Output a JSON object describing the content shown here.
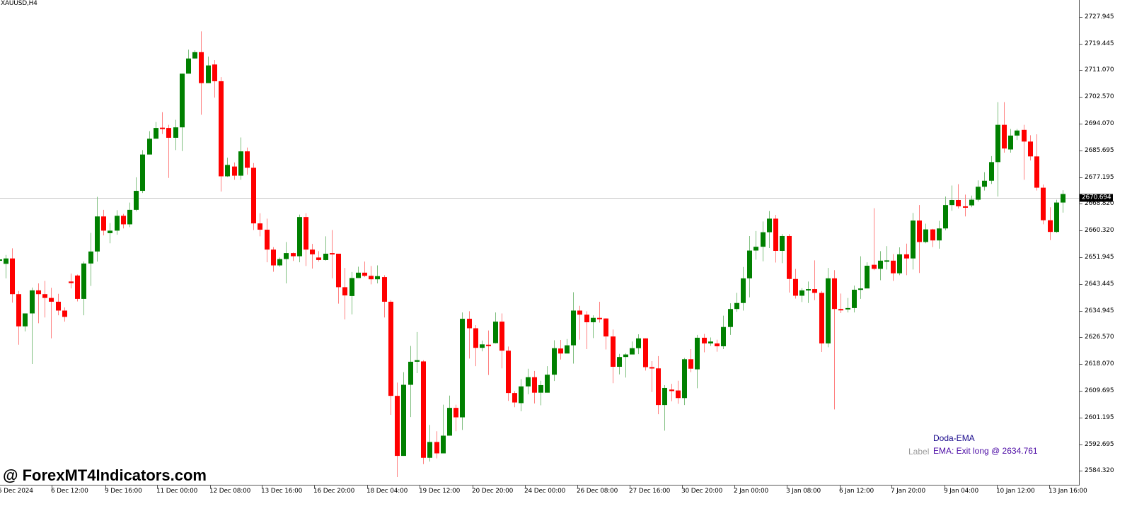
{
  "window": {
    "symbol_label": "XAUUSD,H4"
  },
  "colors": {
    "bull": "#008000",
    "bear": "#ff0000",
    "bull_wick": "#7fbf7f",
    "bear_wick": "#ff8080",
    "bid_line": "#c8c8c8",
    "axis": "#555555"
  },
  "price_axis": {
    "labels": [
      "2727.945",
      "2719.445",
      "2711.070",
      "2702.570",
      "2694.070",
      "2685.695",
      "2677.195",
      "2668.820",
      "2660.320",
      "2651.945",
      "2643.445",
      "2634.945",
      "2626.570",
      "2618.070",
      "2609.695",
      "2601.195",
      "2592.695",
      "2584.320"
    ],
    "current_price": "2670.694"
  },
  "time_axis": {
    "labels": [
      "5 Dec 2024",
      "6 Dec 12:00",
      "9 Dec 16:00",
      "11 Dec 00:00",
      "12 Dec 08:00",
      "13 Dec 16:00",
      "16 Dec 20:00",
      "18 Dec 04:00",
      "19 Dec 12:00",
      "20 Dec 20:00",
      "24 Dec 00:00",
      "26 Dec 08:00",
      "27 Dec 16:00",
      "30 Dec 20:00",
      "2 Jan 00:00",
      "3 Jan 08:00",
      "6 Jan 12:00",
      "7 Jan 20:00",
      "9 Jan 04:00",
      "10 Jan 12:00",
      "13 Jan 16:00"
    ]
  },
  "watermark": "@ ForexMT4Indicators.com",
  "indicator": {
    "name": "Doda-EMA",
    "label": "Label",
    "value_text": "EMA: Exit long @ 2634.761"
  },
  "chart_data": {
    "type": "candlestick",
    "title": "XAUUSD,H4",
    "xlabel": "",
    "ylabel": "",
    "ylim": [
      2582.0,
      2731.0
    ],
    "grid": false,
    "current_price": 2670.694,
    "x": [
      "5 Dec 2024",
      "6 Dec 12:00",
      "9 Dec 16:00",
      "11 Dec 00:00",
      "12 Dec 08:00",
      "13 Dec 16:00",
      "16 Dec 20:00",
      "18 Dec 04:00",
      "19 Dec 12:00",
      "20 Dec 20:00",
      "24 Dec 00:00",
      "26 Dec 08:00",
      "27 Dec 16:00",
      "30 Dec 20:00",
      "2 Jan 00:00",
      "3 Jan 08:00",
      "6 Jan 12:00",
      "7 Jan 20:00",
      "9 Jan 04:00",
      "10 Jan 12:00",
      "13 Jan 16:00"
    ],
    "candles": [
      [
        2651.0,
        2651.2,
        2651.5,
        2650.7
      ],
      [
        2649.8,
        2651.5,
        2652.6,
        2645.2
      ],
      [
        2651.5,
        2640.2,
        2654.7,
        2637.5
      ],
      [
        2640.2,
        2630.0,
        2641.2,
        2624.2
      ],
      [
        2630.0,
        2634.1,
        2634.1,
        2628.4
      ],
      [
        2634.1,
        2641.4,
        2642.3,
        2618.1
      ],
      [
        2641.4,
        2640.2,
        2643.6,
        2631.0
      ],
      [
        2640.2,
        2639.0,
        2644.4,
        2632.8
      ],
      [
        2639.0,
        2637.8,
        2642.2,
        2626.2
      ],
      [
        2637.8,
        2635.0,
        2640.3,
        2633.5
      ],
      [
        2635.0,
        2633.0,
        2636.0,
        2631.5
      ],
      [
        2644.2,
        2643.7,
        2646.7,
        2642.0
      ],
      [
        2646.1,
        2638.7,
        2646.4,
        2637.9
      ],
      [
        2638.7,
        2649.9,
        2650.5,
        2633.5
      ],
      [
        2649.9,
        2653.7,
        2659.6,
        2642.8
      ],
      [
        2653.7,
        2664.8,
        2671.0,
        2650.5
      ],
      [
        2664.8,
        2660.3,
        2666.9,
        2658.8
      ],
      [
        2659.5,
        2660.3,
        2662.7,
        2656.3
      ],
      [
        2660.3,
        2665.0,
        2666.8,
        2659.0
      ],
      [
        2665.0,
        2662.3,
        2665.6,
        2661.0
      ],
      [
        2662.3,
        2666.9,
        2669.2,
        2661.4
      ],
      [
        2666.9,
        2672.9,
        2677.2,
        2666.4
      ],
      [
        2672.9,
        2684.4,
        2685.8,
        2672.2
      ],
      [
        2684.4,
        2689.4,
        2691.8,
        2686.4
      ],
      [
        2689.4,
        2692.8,
        2694.7,
        2691.8
      ],
      [
        2692.9,
        2692.8,
        2697.8,
        2690.9
      ],
      [
        2692.8,
        2689.7,
        2693.8,
        2677.0
      ],
      [
        2689.7,
        2693.0,
        2695.4,
        2685.8
      ],
      [
        2693.0,
        2710.0,
        2710.0,
        2685.5
      ],
      [
        2710.0,
        2714.8,
        2717.6,
        2711.2
      ],
      [
        2714.8,
        2716.8,
        2717.4,
        2714.8
      ],
      [
        2716.8,
        2707.0,
        2723.4,
        2697.0
      ],
      [
        2707.0,
        2712.6,
        2715.4,
        2708.3
      ],
      [
        2712.9,
        2707.6,
        2714.3,
        2702.4
      ],
      [
        2707.6,
        2677.5,
        2708.9,
        2672.7
      ],
      [
        2677.5,
        2681.1,
        2683.4,
        2677.3
      ],
      [
        2680.6,
        2677.7,
        2681.9,
        2676.4
      ],
      [
        2677.7,
        2685.4,
        2689.8,
        2676.4
      ],
      [
        2685.4,
        2680.2,
        2686.6,
        2678.0
      ],
      [
        2680.2,
        2662.6,
        2681.7,
        2660.5
      ],
      [
        2662.6,
        2660.6,
        2665.8,
        2658.5
      ],
      [
        2660.6,
        2654.3,
        2664.1,
        2650.3
      ],
      [
        2654.3,
        2649.3,
        2655.1,
        2647.3
      ],
      [
        2649.3,
        2651.3,
        2651.8,
        2648.9
      ],
      [
        2651.3,
        2653.2,
        2656.7,
        2643.6
      ],
      [
        2653.2,
        2652.2,
        2653.4,
        2650.7
      ],
      [
        2652.2,
        2664.6,
        2665.4,
        2650.3
      ],
      [
        2664.6,
        2654.3,
        2665.8,
        2649.1
      ],
      [
        2654.3,
        2652.8,
        2656.1,
        2648.3
      ],
      [
        2651.8,
        2651.0,
        2653.8,
        2650.5
      ],
      [
        2651.0,
        2653.0,
        2658.5,
        2650.8
      ],
      [
        2653.2,
        2653.1,
        2660.5,
        2645.2
      ],
      [
        2653.0,
        2642.4,
        2653.0,
        2637.2
      ],
      [
        2642.4,
        2639.8,
        2648.5,
        2632.2
      ],
      [
        2639.6,
        2645.3,
        2647.2,
        2633.8
      ],
      [
        2645.3,
        2647.0,
        2648.9,
        2645.3
      ],
      [
        2647.0,
        2646.0,
        2650.5,
        2645.6
      ],
      [
        2646.0,
        2644.9,
        2649.1,
        2643.3
      ],
      [
        2644.9,
        2645.9,
        2649.3,
        2643.6
      ],
      [
        2645.6,
        2637.8,
        2646.2,
        2632.8
      ],
      [
        2637.8,
        2608.0,
        2638.3,
        2602.0
      ],
      [
        2608.0,
        2589.0,
        2612.2,
        2582.3
      ],
      [
        2589.0,
        2611.5,
        2615.5,
        2589.0
      ],
      [
        2611.5,
        2618.8,
        2623.8,
        2601.3
      ],
      [
        2618.8,
        2619.3,
        2628.2,
        2615.2
      ],
      [
        2618.9,
        2588.4,
        2619.3,
        2586.4
      ],
      [
        2588.4,
        2593.4,
        2598.8,
        2587.2
      ],
      [
        2593.4,
        2589.8,
        2596.8,
        2588.2
      ],
      [
        2589.8,
        2595.4,
        2605.2,
        2591.2
      ],
      [
        2595.4,
        2604.2,
        2608.1,
        2600.2
      ],
      [
        2604.2,
        2601.2,
        2605.2,
        2596.8
      ],
      [
        2601.2,
        2632.4,
        2634.4,
        2597.2
      ],
      [
        2632.4,
        2629.4,
        2634.8,
        2619.8
      ],
      [
        2629.4,
        2623.2,
        2630.4,
        2617.4
      ],
      [
        2623.2,
        2624.3,
        2625.5,
        2622.1
      ],
      [
        2624.2,
        2623.9,
        2628.7,
        2614.6
      ],
      [
        2624.7,
        2631.5,
        2634.4,
        2624.6
      ],
      [
        2631.5,
        2622.3,
        2634.1,
        2616.7
      ],
      [
        2622.3,
        2608.9,
        2623.6,
        2606.4
      ],
      [
        2608.9,
        2605.9,
        2609.5,
        2604.4
      ],
      [
        2605.7,
        2611.0,
        2613.3,
        2603.1
      ],
      [
        2611.0,
        2613.9,
        2616.6,
        2608.5
      ],
      [
        2613.9,
        2609.0,
        2615.9,
        2605.6
      ],
      [
        2609.0,
        2611.4,
        2612.8,
        2605.0
      ],
      [
        2609.0,
        2614.7,
        2617.4,
        2610.0
      ],
      [
        2614.7,
        2623.1,
        2625.6,
        2612.7
      ],
      [
        2623.0,
        2621.4,
        2625.7,
        2619.5
      ],
      [
        2621.4,
        2624.0,
        2626.0,
        2622.7
      ],
      [
        2624.0,
        2635.0,
        2640.8,
        2618.2
      ],
      [
        2635.0,
        2633.7,
        2636.5,
        2625.8
      ],
      [
        2633.7,
        2631.3,
        2634.8,
        2622.8
      ],
      [
        2631.3,
        2632.7,
        2633.5,
        2626.3
      ],
      [
        2632.7,
        2632.5,
        2637.8,
        2631.2
      ],
      [
        2632.5,
        2626.8,
        2632.6,
        2622.7
      ],
      [
        2626.8,
        2617.2,
        2629.0,
        2612.0
      ],
      [
        2617.2,
        2620.3,
        2621.3,
        2614.8
      ],
      [
        2620.3,
        2621.1,
        2621.5,
        2613.8
      ],
      [
        2621.1,
        2623.1,
        2625.2,
        2621.2
      ],
      [
        2623.1,
        2626.2,
        2627.5,
        2621.2
      ],
      [
        2626.2,
        2617.1,
        2626.2,
        2616.0
      ],
      [
        2617.1,
        2616.7,
        2619.0,
        2609.2
      ],
      [
        2616.7,
        2605.1,
        2620.6,
        2602.2
      ],
      [
        2605.1,
        2610.5,
        2611.4,
        2597.0
      ],
      [
        2610.0,
        2609.5,
        2611.8,
        2606.3
      ],
      [
        2609.7,
        2607.3,
        2612.8,
        2605.5
      ],
      [
        2607.3,
        2619.6,
        2620.0,
        2605.1
      ],
      [
        2619.6,
        2616.6,
        2622.8,
        2615.5
      ],
      [
        2616.4,
        2626.4,
        2627.3,
        2610.4
      ],
      [
        2626.4,
        2624.6,
        2627.6,
        2621.8
      ],
      [
        2624.6,
        2625.2,
        2626.5,
        2623.8
      ],
      [
        2624.6,
        2623.7,
        2625.8,
        2622.0
      ],
      [
        2623.7,
        2629.8,
        2633.4,
        2622.8
      ],
      [
        2629.8,
        2635.5,
        2637.3,
        2627.3
      ],
      [
        2635.5,
        2637.4,
        2640.6,
        2634.6
      ],
      [
        2637.4,
        2645.2,
        2648.8,
        2635.0
      ],
      [
        2645.2,
        2654.0,
        2658.6,
        2639.2
      ],
      [
        2654.0,
        2655.2,
        2660.2,
        2651.1
      ],
      [
        2655.2,
        2659.8,
        2663.2,
        2650.6
      ],
      [
        2659.8,
        2664.1,
        2666.5,
        2654.8
      ],
      [
        2664.1,
        2653.9,
        2665.3,
        2650.2
      ],
      [
        2653.9,
        2658.6,
        2659.2,
        2650.0
      ],
      [
        2658.6,
        2645.0,
        2659.2,
        2640.7
      ],
      [
        2645.0,
        2639.7,
        2648.2,
        2638.8
      ],
      [
        2639.7,
        2641.4,
        2642.1,
        2637.7
      ],
      [
        2641.4,
        2641.8,
        2644.2,
        2637.4
      ],
      [
        2641.8,
        2640.6,
        2650.9,
        2638.3
      ],
      [
        2640.6,
        2624.6,
        2641.2,
        2621.9
      ],
      [
        2624.6,
        2645.2,
        2648.5,
        2623.4
      ],
      [
        2645.2,
        2635.5,
        2647.8,
        2603.7
      ],
      [
        2635.5,
        2635.4,
        2640.4,
        2634.2
      ],
      [
        2635.4,
        2635.8,
        2639.0,
        2634.4
      ],
      [
        2635.8,
        2641.6,
        2642.9,
        2634.4
      ],
      [
        2641.6,
        2642.0,
        2652.2,
        2638.7
      ],
      [
        2642.0,
        2649.2,
        2650.3,
        2643.0
      ],
      [
        2649.5,
        2648.2,
        2667.4,
        2647.8
      ],
      [
        2648.2,
        2650.8,
        2653.8,
        2644.6
      ],
      [
        2650.8,
        2650.9,
        2655.4,
        2648.0
      ],
      [
        2650.8,
        2646.8,
        2652.9,
        2644.4
      ],
      [
        2646.8,
        2652.8,
        2655.0,
        2646.2
      ],
      [
        2652.8,
        2651.5,
        2656.2,
        2646.2
      ],
      [
        2651.5,
        2663.5,
        2665.9,
        2648.0
      ],
      [
        2663.5,
        2656.7,
        2668.4,
        2646.9
      ],
      [
        2656.7,
        2660.7,
        2662.5,
        2656.3
      ],
      [
        2660.7,
        2657.2,
        2660.9,
        2655.1
      ],
      [
        2657.2,
        2661.0,
        2663.4,
        2654.6
      ],
      [
        2661.0,
        2668.4,
        2671.1,
        2660.4
      ],
      [
        2668.4,
        2670.0,
        2674.6,
        2666.6
      ],
      [
        2670.0,
        2668.0,
        2675.0,
        2667.3
      ],
      [
        2668.0,
        2667.6,
        2671.7,
        2664.8
      ],
      [
        2668.3,
        2670.1,
        2671.4,
        2667.7
      ],
      [
        2670.1,
        2674.2,
        2676.2,
        2669.5
      ],
      [
        2674.2,
        2676.1,
        2678.8,
        2673.0
      ],
      [
        2676.1,
        2682.0,
        2683.9,
        2675.1
      ],
      [
        2682.0,
        2693.8,
        2701.0,
        2671.1
      ],
      [
        2693.8,
        2686.3,
        2701.0,
        2685.0
      ],
      [
        2686.0,
        2690.4,
        2692.5,
        2685.0
      ],
      [
        2690.4,
        2692.0,
        2692.5,
        2689.0
      ],
      [
        2692.2,
        2688.5,
        2693.8,
        2676.4
      ],
      [
        2688.5,
        2683.8,
        2690.5,
        2682.5
      ],
      [
        2683.8,
        2673.9,
        2690.8,
        2673.0
      ],
      [
        2673.9,
        2663.6,
        2674.9,
        2662.3
      ],
      [
        2663.6,
        2659.9,
        2667.7,
        2657.3
      ],
      [
        2659.9,
        2669.2,
        2670.1,
        2659.6
      ],
      [
        2669.2,
        2671.9,
        2673.1,
        2666.0
      ]
    ]
  }
}
